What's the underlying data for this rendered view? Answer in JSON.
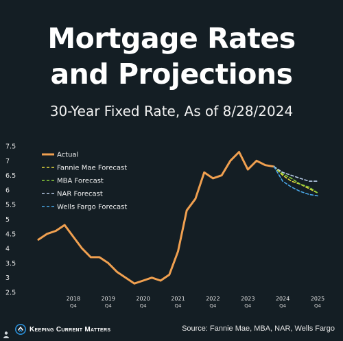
{
  "header": {
    "title_line1": "Mortgage Rates",
    "title_line2": "and Projections",
    "subtitle": "30-Year Fixed Rate, As of 8/28/2024"
  },
  "footer": {
    "brand": "Keeping Current Matters",
    "source": "Source:  Fannie Mae, MBA, NAR, Wells Fargo"
  },
  "colors": {
    "background": "#141e24",
    "actual": "#f0a050",
    "fannie_mae": "#e8dc3c",
    "mba": "#8cd13c",
    "nar": "#b8cce8",
    "wells_fargo": "#4aa8e8"
  },
  "chart_data": {
    "type": "line",
    "x_unit": "quarter",
    "ylim": [
      2.5,
      7.5
    ],
    "yticks": [
      2.5,
      3,
      3.5,
      4,
      4.5,
      5,
      5.5,
      6,
      6.5,
      7,
      7.5
    ],
    "ytick_labels": [
      "2.5",
      "3",
      "3.5",
      "4",
      "4.5",
      "5",
      "5.5",
      "6",
      "6.5",
      "7",
      "7.5"
    ],
    "xticks": [
      {
        "year": "2018",
        "quarter": "Q4",
        "x": 2018.75
      },
      {
        "year": "2019",
        "quarter": "Q4",
        "x": 2019.75
      },
      {
        "year": "2020",
        "quarter": "Q4",
        "x": 2020.75
      },
      {
        "year": "2021",
        "quarter": "Q4",
        "x": 2021.75
      },
      {
        "year": "2022",
        "quarter": "Q4",
        "x": 2022.75
      },
      {
        "year": "2023",
        "quarter": "Q4",
        "x": 2023.75
      },
      {
        "year": "2024",
        "quarter": "Q4",
        "x": 2024.75
      },
      {
        "year": "2025",
        "quarter": "Q4",
        "x": 2025.75
      }
    ],
    "xlim": [
      2017.75,
      2025.75
    ],
    "grid": false,
    "legend_position": "top-left",
    "series": [
      {
        "name": "Actual",
        "style": "solid",
        "color_key": "actual",
        "x": [
          2017.75,
          2018.0,
          2018.25,
          2018.5,
          2018.75,
          2019.0,
          2019.25,
          2019.5,
          2019.75,
          2020.0,
          2020.25,
          2020.5,
          2020.75,
          2021.0,
          2021.25,
          2021.5,
          2021.75,
          2022.0,
          2022.25,
          2022.5,
          2022.75,
          2023.0,
          2023.25,
          2023.5,
          2023.75,
          2024.0,
          2024.25,
          2024.5
        ],
        "y": [
          4.3,
          4.5,
          4.6,
          4.8,
          4.4,
          4.0,
          3.7,
          3.7,
          3.5,
          3.2,
          3.0,
          2.8,
          2.9,
          3.0,
          2.9,
          3.1,
          3.9,
          5.3,
          5.7,
          6.6,
          6.4,
          6.5,
          7.0,
          7.3,
          6.7,
          7.0,
          6.85,
          6.8
        ]
      },
      {
        "name": "Fannie Mae Forecast",
        "style": "dashed",
        "color_key": "fannie_mae",
        "x": [
          2024.5,
          2024.75,
          2025.0,
          2025.25,
          2025.5,
          2025.75
        ],
        "y": [
          6.8,
          6.5,
          6.3,
          6.2,
          6.05,
          5.9
        ]
      },
      {
        "name": "MBA Forecast",
        "style": "dashed",
        "color_key": "mba",
        "x": [
          2024.5,
          2024.75,
          2025.0,
          2025.25,
          2025.5,
          2025.75
        ],
        "y": [
          6.8,
          6.55,
          6.4,
          6.2,
          6.1,
          5.9
        ]
      },
      {
        "name": "NAR Forecast",
        "style": "dashed",
        "color_key": "nar",
        "x": [
          2024.5,
          2024.75,
          2025.0,
          2025.25,
          2025.5,
          2025.75
        ],
        "y": [
          6.8,
          6.6,
          6.5,
          6.4,
          6.3,
          6.3
        ]
      },
      {
        "name": "Wells Fargo Forecast",
        "style": "dashed",
        "color_key": "wells_fargo",
        "x": [
          2024.5,
          2024.75,
          2025.0,
          2025.25,
          2025.5,
          2025.75
        ],
        "y": [
          6.8,
          6.3,
          6.1,
          5.95,
          5.85,
          5.8
        ]
      }
    ]
  }
}
